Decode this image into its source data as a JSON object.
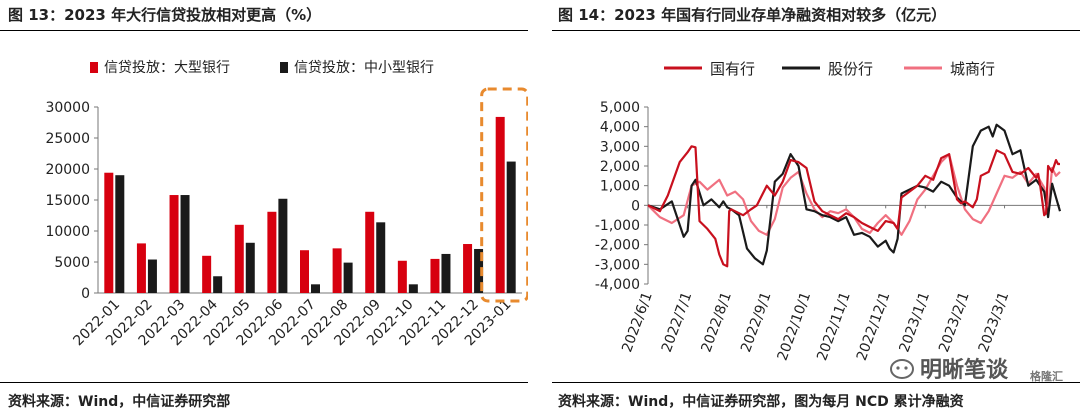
{
  "panel_left": {
    "title": "图 13：2023 年大行信贷投放相对更高（%）",
    "source": "资料来源：Wind，中信证券研究部"
  },
  "panel_right": {
    "title": "图 14：2023 年国有行同业存单净融资相对较多（亿元）",
    "source": "资料来源：Wind，中信证券研究部，图为每月 NCD 累计净融资"
  },
  "watermark": {
    "text": "明晰笔谈",
    "extra": "格隆汇"
  },
  "chart_data": [
    {
      "type": "bar",
      "title": "",
      "categories": [
        "2022-01",
        "2022-02",
        "2022-03",
        "2022-04",
        "2022-05",
        "2022-06",
        "2022-07",
        "2022-08",
        "2022-09",
        "2022-10",
        "2022-11",
        "2022-12",
        "2023-01"
      ],
      "series": [
        {
          "name": "信贷投放：大型银行",
          "color": "#d7000f",
          "values": [
            19400,
            8000,
            15800,
            6000,
            11000,
            13100,
            6900,
            7200,
            13100,
            5200,
            5500,
            7900,
            28400
          ]
        },
        {
          "name": "信贷投放：中小型银行",
          "color": "#1a1a1a",
          "values": [
            19000,
            5400,
            15800,
            2700,
            8100,
            15200,
            1400,
            4900,
            11400,
            1400,
            6300,
            7100,
            21200
          ]
        }
      ],
      "ylim": [
        0,
        30000
      ],
      "yticks": [
        0,
        5000,
        10000,
        15000,
        20000,
        25000,
        30000
      ],
      "ytick_labels": [
        "0",
        "5000",
        "10000",
        "15000",
        "20000",
        "25000",
        "30000"
      ],
      "legend_position": "top",
      "highlight_category": "2023-01",
      "highlight_color": "#e88a2e"
    },
    {
      "type": "line",
      "title": "",
      "x_labels": [
        "2022/6/1",
        "2022/7/1",
        "2022/8/1",
        "2022/9/1",
        "2022/10/1",
        "2022/11/1",
        "2022/12/1",
        "2023/1/1",
        "2023/2/1",
        "2023/3/1"
      ],
      "ylim": [
        -4000,
        5000
      ],
      "yticks": [
        -4000,
        -3000,
        -2000,
        -1000,
        0,
        1000,
        2000,
        3000,
        4000,
        5000
      ],
      "ytick_labels": [
        "-4,000",
        "-3,000",
        "-2,000",
        "-1,000",
        "0",
        "1,000",
        "2,000",
        "3,000",
        "4,000",
        "5,000"
      ],
      "legend_position": "top",
      "series": [
        {
          "name": "国有行",
          "color": "#c8101e",
          "x": [
            0,
            0.3,
            0.5,
            0.8,
            1.0,
            1.1,
            1.2,
            1.3,
            1.5,
            1.7,
            1.8,
            1.9,
            2.0,
            2.05,
            2.1,
            2.4,
            2.6,
            2.75,
            3.0,
            3.2,
            3.4,
            3.6,
            3.8,
            4.0,
            4.2,
            4.4,
            4.6,
            4.8,
            5.0,
            5.2,
            5.4,
            5.6,
            5.8,
            6.0,
            6.2,
            6.3,
            6.4,
            6.6,
            6.8,
            7.0,
            7.2,
            7.4,
            7.6,
            7.8,
            7.9,
            8.0,
            8.2,
            8.3,
            8.4,
            8.6,
            8.8,
            9.0,
            9.2,
            9.4,
            9.6,
            9.8,
            9.85,
            9.9,
            10.0,
            10.05,
            10.1,
            10.2,
            10.3,
            10.35,
            10.4
          ],
          "y": [
            0,
            -300,
            500,
            2200,
            2700,
            3000,
            2950,
            -800,
            -1200,
            -1700,
            -2500,
            -3000,
            -3100,
            -300,
            -200,
            -500,
            -200,
            0,
            1000,
            500,
            1200,
            2300,
            2200,
            1900,
            200,
            -300,
            -500,
            -700,
            -400,
            -600,
            -900,
            -1100,
            -1300,
            -800,
            -900,
            -1200,
            400,
            700,
            1000,
            1500,
            1300,
            2400,
            2600,
            300,
            100,
            200,
            -100,
            300,
            1500,
            1700,
            2800,
            2600,
            1700,
            1600,
            1900,
            1400,
            1600,
            1000,
            -500,
            -400,
            2000,
            1700,
            2300,
            2100,
            2100
          ]
        },
        {
          "name": "股份行",
          "color": "#1a1a1a",
          "x": [
            0,
            0.3,
            0.6,
            0.9,
            1.0,
            1.1,
            1.2,
            1.4,
            1.6,
            1.8,
            1.9,
            2.0,
            2.1,
            2.3,
            2.5,
            2.7,
            2.9,
            3.0,
            3.2,
            3.4,
            3.6,
            3.8,
            4.0,
            4.2,
            4.4,
            4.6,
            4.8,
            5.0,
            5.2,
            5.4,
            5.6,
            5.8,
            6.0,
            6.1,
            6.2,
            6.3,
            6.4,
            6.6,
            6.8,
            7.0,
            7.2,
            7.4,
            7.6,
            7.8,
            8.0,
            8.2,
            8.4,
            8.6,
            8.7,
            8.8,
            9.0,
            9.2,
            9.4,
            9.6,
            9.8,
            10.0,
            10.1,
            10.2,
            10.3,
            10.4
          ],
          "y": [
            0,
            -200,
            200,
            -1600,
            -1300,
            1000,
            1300,
            0,
            300,
            -100,
            200,
            -100,
            -200,
            -500,
            -2200,
            -2700,
            -3000,
            -2300,
            1200,
            1600,
            2600,
            2000,
            -200,
            -300,
            -500,
            -600,
            -800,
            -600,
            -1500,
            -1400,
            -1600,
            -2100,
            -1800,
            -2200,
            -2400,
            -1700,
            600,
            800,
            1000,
            900,
            700,
            1200,
            1000,
            400,
            0,
            3000,
            3800,
            4000,
            3500,
            4100,
            3800,
            2600,
            2800,
            1000,
            1300,
            700,
            -600,
            1100,
            400,
            -300
          ]
        },
        {
          "name": "城商行",
          "color": "#f07080",
          "x": [
            0,
            0.3,
            0.6,
            0.9,
            1.1,
            1.3,
            1.5,
            1.8,
            2.0,
            2.2,
            2.4,
            2.6,
            2.8,
            3.0,
            3.2,
            3.4,
            3.6,
            3.8,
            4.0,
            4.2,
            4.4,
            4.6,
            4.8,
            5.0,
            5.2,
            5.4,
            5.6,
            5.8,
            6.0,
            6.2,
            6.4,
            6.6,
            6.8,
            7.0,
            7.2,
            7.4,
            7.6,
            7.8,
            8.0,
            8.2,
            8.4,
            8.6,
            8.8,
            9.0,
            9.2,
            9.4,
            9.6,
            9.8,
            10.0,
            10.1,
            10.2,
            10.3,
            10.4
          ],
          "y": [
            0,
            -600,
            -900,
            -500,
            1000,
            1200,
            800,
            1300,
            500,
            700,
            300,
            -800,
            -1300,
            -1500,
            -700,
            900,
            1400,
            1700,
            600,
            -200,
            -600,
            -300,
            -400,
            -200,
            -600,
            -1200,
            -1400,
            -900,
            -500,
            -900,
            -1500,
            -800,
            300,
            800,
            1500,
            2200,
            2600,
            1000,
            -200,
            -700,
            -900,
            -300,
            600,
            1500,
            1400,
            1700,
            1100,
            1600,
            900,
            -300,
            1900,
            1500,
            1700
          ]
        }
      ]
    }
  ]
}
